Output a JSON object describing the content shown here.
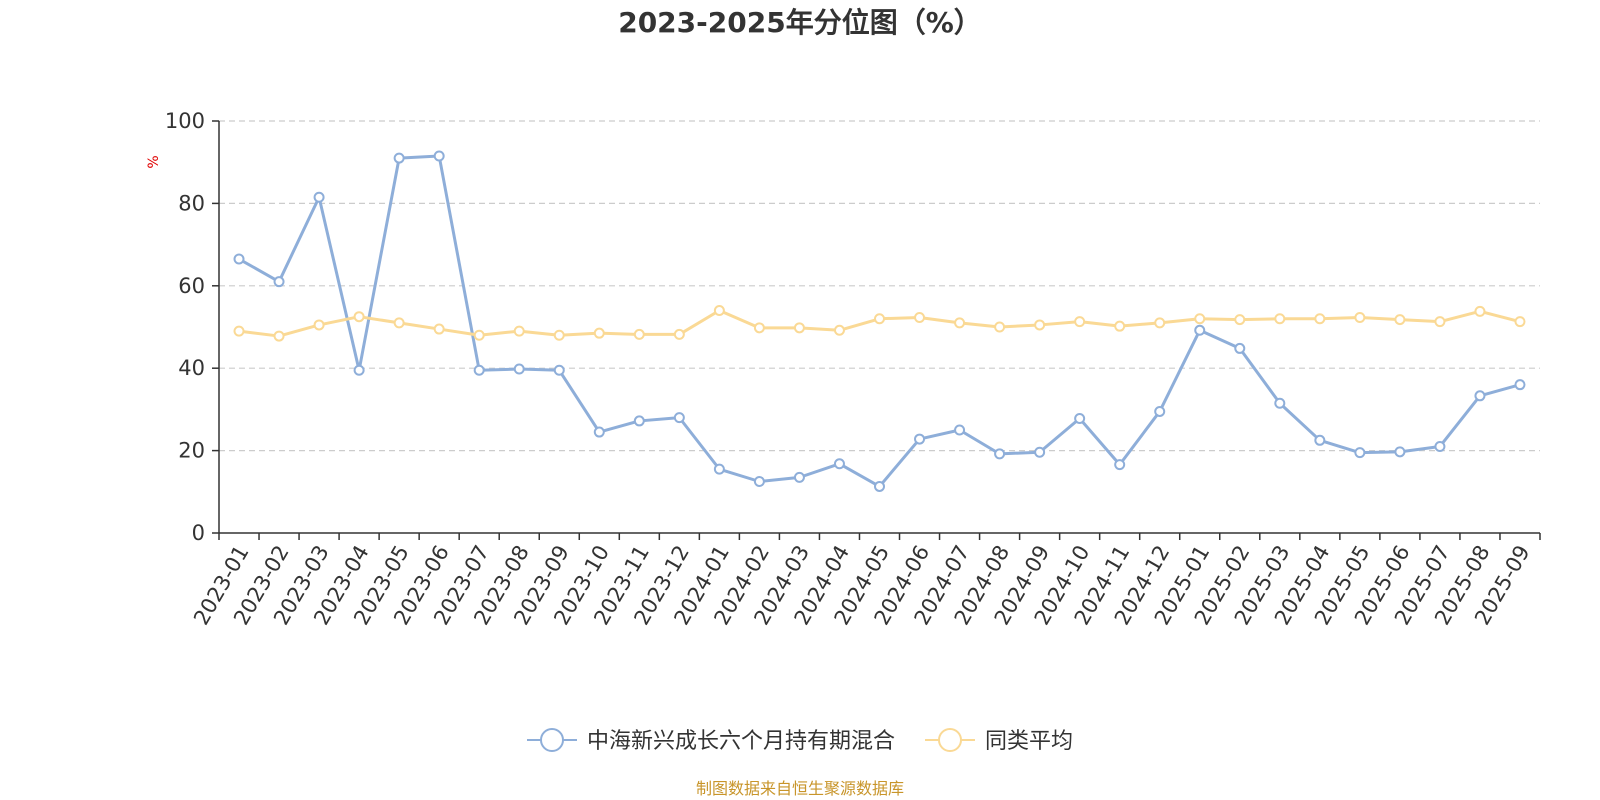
{
  "chart_data": {
    "type": "line",
    "title": "2023-2025年分位图（%）",
    "ylabel": "%",
    "ylim": [
      0,
      100
    ],
    "yticks": [
      0,
      20,
      40,
      60,
      80,
      100
    ],
    "grid": true,
    "legend_position": "bottom-center",
    "categories": [
      "2023-01",
      "2023-02",
      "2023-03",
      "2023-04",
      "2023-05",
      "2023-06",
      "2023-07",
      "2023-08",
      "2023-09",
      "2023-10",
      "2023-11",
      "2023-12",
      "2024-01",
      "2024-02",
      "2024-03",
      "2024-04",
      "2024-05",
      "2024-06",
      "2024-07",
      "2024-08",
      "2024-09",
      "2024-10",
      "2024-11",
      "2024-12",
      "2025-01",
      "2025-02",
      "2025-03",
      "2025-04",
      "2025-05",
      "2025-06",
      "2025-07",
      "2025-08",
      "2025-09"
    ],
    "series": [
      {
        "name": "中海新兴成长六个月持有期混合",
        "color": "#8eaed9",
        "values": [
          66.5,
          61.0,
          81.5,
          39.5,
          91.0,
          91.5,
          39.5,
          39.8,
          39.5,
          24.5,
          27.2,
          28.0,
          15.5,
          12.5,
          13.5,
          16.8,
          11.3,
          22.8,
          25.0,
          19.2,
          19.6,
          27.8,
          16.6,
          29.5,
          49.2,
          44.8,
          31.5,
          22.5,
          19.5,
          19.7,
          21.0,
          33.3,
          36.0
        ]
      },
      {
        "name": "同类平均",
        "color": "#fad995",
        "values": [
          49.0,
          47.8,
          50.5,
          52.5,
          51.0,
          49.5,
          48.0,
          49.0,
          48.0,
          48.5,
          48.2,
          48.2,
          54.0,
          49.8,
          49.8,
          49.2,
          52.0,
          52.3,
          51.0,
          50.0,
          50.5,
          51.3,
          50.2,
          51.0,
          52.0,
          51.8,
          52.0,
          52.0,
          52.3,
          51.8,
          51.3,
          53.8,
          51.3
        ]
      }
    ],
    "source": "制图数据来自恒生聚源数据库"
  }
}
